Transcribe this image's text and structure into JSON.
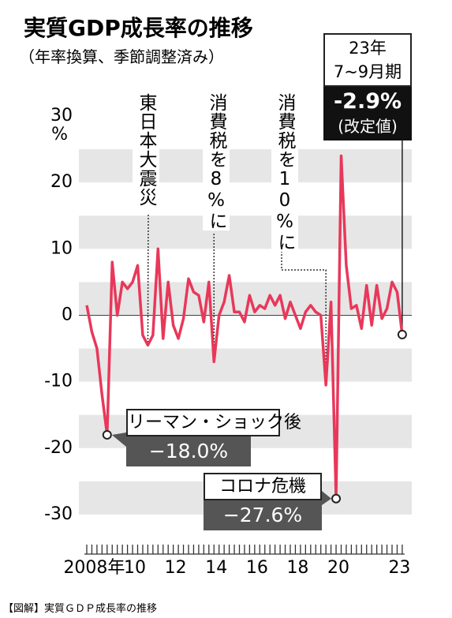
{
  "chart_data": {
    "type": "line",
    "title": "実質GDP成長率の推移",
    "subtitle": "（年率換算、季節調整済み）",
    "y_unit": "%",
    "categories": [
      null,
      "2008年",
      null,
      null,
      null,
      null,
      null,
      null,
      null,
      "10",
      null,
      null,
      null,
      null,
      null,
      null,
      null,
      "12",
      null,
      null,
      null,
      null,
      null,
      null,
      null,
      "14",
      null,
      null,
      null,
      null,
      null,
      null,
      null,
      "16",
      null,
      null,
      null,
      null,
      null,
      null,
      null,
      "18",
      null,
      null,
      null,
      null,
      null,
      null,
      null,
      "20",
      null,
      null,
      null,
      null,
      null,
      null,
      null,
      null,
      null,
      null,
      null,
      "23",
      null
    ],
    "series": [
      {
        "name": "実質GDP成長率",
        "color": "#e8385a",
        "values": [
          1.5,
          -2.5,
          -5,
          -12,
          -18,
          8,
          0,
          5,
          4,
          5,
          7.5,
          -3,
          -4.5,
          -3,
          10,
          -3.5,
          5,
          -1.5,
          -3.5,
          -0.5,
          5.5,
          3.5,
          3,
          -1,
          5,
          -7,
          0,
          2,
          6,
          0.5,
          0.5,
          -1,
          3,
          0.5,
          1.5,
          1,
          3,
          1.5,
          3,
          -0.5,
          2,
          0,
          -2,
          0.5,
          1.5,
          0.5,
          0,
          -10.5,
          2,
          -27.6,
          24,
          7.5,
          1,
          1.5,
          -2,
          4.5,
          -1.5,
          4.5,
          -0.5,
          1,
          5,
          3.5,
          -2.9
        ],
        "value_labels": [
          null,
          null,
          null,
          null,
          "−18.0%",
          null,
          null,
          null,
          null,
          null,
          null,
          null,
          null,
          null,
          null,
          null,
          null,
          null,
          null,
          null,
          null,
          null,
          null,
          null,
          null,
          null,
          null,
          null,
          null,
          null,
          null,
          null,
          null,
          null,
          null,
          null,
          null,
          null,
          null,
          null,
          null,
          null,
          null,
          null,
          null,
          null,
          null,
          null,
          null,
          "−27.6%",
          null,
          null,
          null,
          null,
          null,
          null,
          null,
          null,
          null,
          null,
          null,
          null,
          "-2.9%"
        ]
      }
    ],
    "annotations": [
      "リーマン・ショック後",
      "コロナ危機",
      "東日本大震災",
      "消費税を8%に",
      "消費税を10%に",
      "23年",
      "7~9月期",
      "(改定値)"
    ],
    "ylim": [
      -35,
      30
    ],
    "yticks": [
      -30,
      -20,
      -10,
      0,
      10,
      20,
      30
    ],
    "grid": true
  },
  "footer": "【図解】実質ＧＤＰ成長率の推移"
}
